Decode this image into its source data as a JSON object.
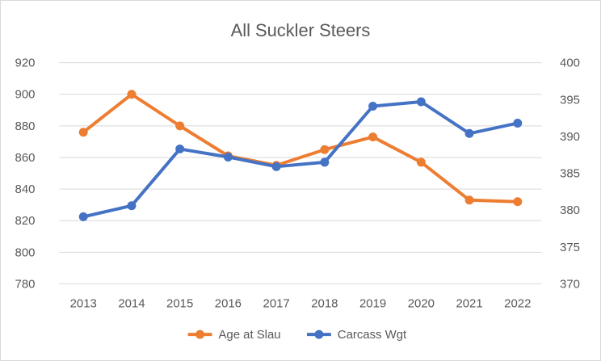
{
  "chart_data": {
    "type": "line",
    "title": "All Suckler Steers",
    "categories": [
      "2013",
      "2014",
      "2015",
      "2016",
      "2017",
      "2018",
      "2019",
      "2020",
      "2021",
      "2022"
    ],
    "y_left": {
      "min": 780,
      "max": 920,
      "step": 20,
      "ticks": [
        "780",
        "800",
        "820",
        "840",
        "860",
        "880",
        "900",
        "920"
      ]
    },
    "y_right": {
      "min": 370,
      "max": 400,
      "step": 5,
      "ticks": [
        "370",
        "375",
        "380",
        "385",
        "390",
        "395",
        "400"
      ]
    },
    "grid": true,
    "legend_position": "bottom",
    "series": [
      {
        "name": "Age at Slau",
        "axis": "left",
        "color": "#ED7D31",
        "values": [
          876,
          900,
          880,
          861,
          855,
          865,
          873,
          857,
          833,
          832
        ]
      },
      {
        "name": "Carcass Wgt",
        "axis": "right",
        "color": "#4472C4",
        "values": [
          379.1,
          380.6,
          388.3,
          387.2,
          385.9,
          386.5,
          394.1,
          394.7,
          390.4,
          391.8
        ]
      }
    ]
  }
}
